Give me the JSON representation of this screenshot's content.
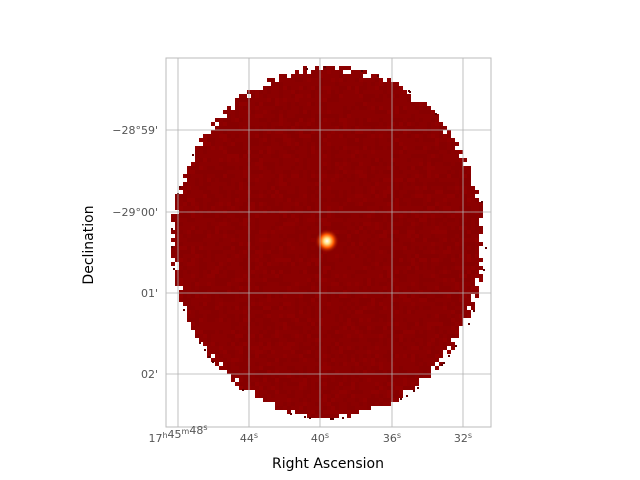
{
  "chart_data": {
    "type": "heatmap",
    "title": "",
    "xlabel": "Right Ascension",
    "ylabel": "Declination",
    "x_tick_labels": [
      {
        "base": "17",
        "sup1": "h",
        "mid": "45",
        "sup2": "m",
        "tail": "48",
        "sup3": "s"
      },
      {
        "base": "44",
        "sup3": "s"
      },
      {
        "base": "40",
        "sup3": "s"
      },
      {
        "base": "36",
        "sup3": "s"
      },
      {
        "base": "32",
        "sup3": "s"
      }
    ],
    "y_tick_labels": [
      "−28°59'",
      "−29°00'",
      "01'",
      "02'"
    ],
    "grid": true,
    "colormap": [
      "#8b0000",
      "#ff4000",
      "#ffb000",
      "#ffffff"
    ],
    "field_of_view": "circular",
    "background_level": 0.05,
    "point_source": {
      "peak": 1.0,
      "ra_offset_px": null
    }
  }
}
